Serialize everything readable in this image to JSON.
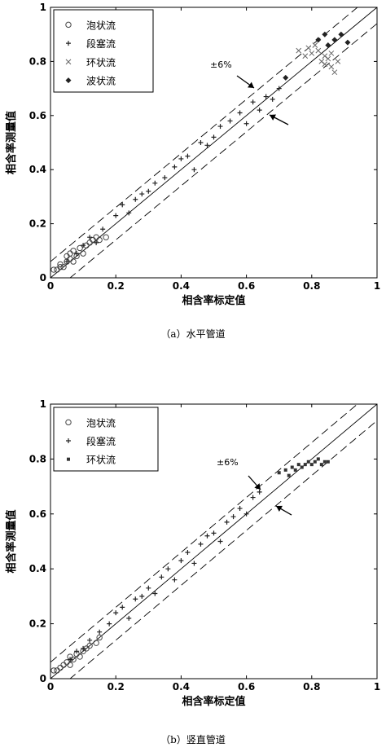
{
  "chart_data": [
    {
      "type": "scatter",
      "caption": "（a）水平管道",
      "xlabel": "相含率标定值",
      "ylabel": "相含率测量值",
      "xlim": [
        0,
        1
      ],
      "ylim": [
        0,
        1
      ],
      "xticks": [
        "0",
        "0.2",
        "0.4",
        "0.6",
        "0.8",
        "1"
      ],
      "yticks": [
        "0",
        "0.2",
        "0.4",
        "0.6",
        "0.8",
        "1"
      ],
      "grid": false,
      "legend_position": "top-left",
      "annotation": "±6%",
      "reference_lines": {
        "center_slope": 1,
        "band_percent": 6
      },
      "series": [
        {
          "name": "泡状流",
          "marker": "circle",
          "points": [
            [
              0.01,
              0.03
            ],
            [
              0.02,
              0.03
            ],
            [
              0.03,
              0.04
            ],
            [
              0.03,
              0.05
            ],
            [
              0.04,
              0.04
            ],
            [
              0.05,
              0.06
            ],
            [
              0.05,
              0.08
            ],
            [
              0.06,
              0.07
            ],
            [
              0.06,
              0.09
            ],
            [
              0.07,
              0.06
            ],
            [
              0.07,
              0.1
            ],
            [
              0.08,
              0.08
            ],
            [
              0.09,
              0.11
            ],
            [
              0.1,
              0.09
            ],
            [
              0.11,
              0.12
            ],
            [
              0.12,
              0.13
            ],
            [
              0.13,
              0.14
            ],
            [
              0.14,
              0.15
            ],
            [
              0.15,
              0.14
            ],
            [
              0.17,
              0.15
            ]
          ]
        },
        {
          "name": "段塞流",
          "marker": "plus",
          "points": [
            [
              0.05,
              0.06
            ],
            [
              0.08,
              0.09
            ],
            [
              0.1,
              0.12
            ],
            [
              0.12,
              0.15
            ],
            [
              0.14,
              0.13
            ],
            [
              0.16,
              0.18
            ],
            [
              0.2,
              0.23
            ],
            [
              0.22,
              0.27
            ],
            [
              0.24,
              0.24
            ],
            [
              0.26,
              0.29
            ],
            [
              0.28,
              0.31
            ],
            [
              0.3,
              0.32
            ],
            [
              0.32,
              0.35
            ],
            [
              0.35,
              0.37
            ],
            [
              0.38,
              0.41
            ],
            [
              0.4,
              0.44
            ],
            [
              0.42,
              0.45
            ],
            [
              0.44,
              0.4
            ],
            [
              0.46,
              0.5
            ],
            [
              0.48,
              0.49
            ],
            [
              0.5,
              0.52
            ],
            [
              0.52,
              0.56
            ],
            [
              0.55,
              0.58
            ],
            [
              0.58,
              0.61
            ],
            [
              0.6,
              0.57
            ],
            [
              0.62,
              0.65
            ],
            [
              0.64,
              0.62
            ],
            [
              0.66,
              0.67
            ],
            [
              0.68,
              0.66
            ],
            [
              0.7,
              0.7
            ]
          ]
        },
        {
          "name": "环状流",
          "marker": "x",
          "points": [
            [
              0.76,
              0.84
            ],
            [
              0.78,
              0.82
            ],
            [
              0.79,
              0.85
            ],
            [
              0.8,
              0.83
            ],
            [
              0.81,
              0.86
            ],
            [
              0.82,
              0.84
            ],
            [
              0.83,
              0.8
            ],
            [
              0.84,
              0.82
            ],
            [
              0.84,
              0.79
            ],
            [
              0.85,
              0.81
            ],
            [
              0.86,
              0.78
            ],
            [
              0.86,
              0.83
            ],
            [
              0.87,
              0.76
            ],
            [
              0.88,
              0.8
            ]
          ]
        },
        {
          "name": "波状流",
          "marker": "diamond",
          "points": [
            [
              0.72,
              0.74
            ],
            [
              0.82,
              0.88
            ],
            [
              0.84,
              0.9
            ],
            [
              0.85,
              0.86
            ],
            [
              0.87,
              0.88
            ],
            [
              0.89,
              0.9
            ],
            [
              0.91,
              0.87
            ]
          ]
        }
      ]
    },
    {
      "type": "scatter",
      "caption": "（b）竖直管道",
      "xlabel": "相含率标定值",
      "ylabel": "相含率测量值",
      "xlim": [
        0,
        1
      ],
      "ylim": [
        0,
        1
      ],
      "xticks": [
        "0",
        "0.2",
        "0.4",
        "0.6",
        "0.8",
        "1"
      ],
      "yticks": [
        "0",
        "0.2",
        "0.4",
        "0.6",
        "0.8",
        "1"
      ],
      "grid": false,
      "legend_position": "top-left",
      "annotation": "±6%",
      "reference_lines": {
        "center_slope": 1,
        "band_percent": 6
      },
      "series": [
        {
          "name": "泡状流",
          "marker": "circle",
          "points": [
            [
              0.01,
              0.03
            ],
            [
              0.02,
              0.03
            ],
            [
              0.03,
              0.04
            ],
            [
              0.04,
              0.05
            ],
            [
              0.05,
              0.06
            ],
            [
              0.06,
              0.05
            ],
            [
              0.06,
              0.08
            ],
            [
              0.07,
              0.07
            ],
            [
              0.08,
              0.09
            ],
            [
              0.09,
              0.08
            ],
            [
              0.1,
              0.1
            ],
            [
              0.11,
              0.11
            ],
            [
              0.12,
              0.12
            ],
            [
              0.14,
              0.13
            ],
            [
              0.15,
              0.15
            ]
          ]
        },
        {
          "name": "段塞流",
          "marker": "plus",
          "points": [
            [
              0.06,
              0.07
            ],
            [
              0.08,
              0.1
            ],
            [
              0.1,
              0.11
            ],
            [
              0.12,
              0.14
            ],
            [
              0.15,
              0.17
            ],
            [
              0.18,
              0.2
            ],
            [
              0.2,
              0.24
            ],
            [
              0.22,
              0.26
            ],
            [
              0.24,
              0.22
            ],
            [
              0.26,
              0.29
            ],
            [
              0.28,
              0.3
            ],
            [
              0.3,
              0.33
            ],
            [
              0.32,
              0.31
            ],
            [
              0.34,
              0.37
            ],
            [
              0.36,
              0.4
            ],
            [
              0.38,
              0.36
            ],
            [
              0.4,
              0.43
            ],
            [
              0.42,
              0.46
            ],
            [
              0.44,
              0.42
            ],
            [
              0.46,
              0.49
            ],
            [
              0.48,
              0.52
            ],
            [
              0.5,
              0.53
            ],
            [
              0.52,
              0.5
            ],
            [
              0.54,
              0.57
            ],
            [
              0.56,
              0.59
            ],
            [
              0.58,
              0.62
            ],
            [
              0.6,
              0.6
            ],
            [
              0.62,
              0.66
            ],
            [
              0.64,
              0.68
            ]
          ]
        },
        {
          "name": "环状流",
          "marker": "square",
          "points": [
            [
              0.7,
              0.75
            ],
            [
              0.72,
              0.76
            ],
            [
              0.73,
              0.74
            ],
            [
              0.74,
              0.77
            ],
            [
              0.75,
              0.76
            ],
            [
              0.76,
              0.78
            ],
            [
              0.77,
              0.77
            ],
            [
              0.78,
              0.78
            ],
            [
              0.79,
              0.79
            ],
            [
              0.8,
              0.78
            ],
            [
              0.81,
              0.79
            ],
            [
              0.82,
              0.8
            ],
            [
              0.83,
              0.78
            ],
            [
              0.84,
              0.79
            ],
            [
              0.85,
              0.79
            ]
          ]
        }
      ]
    }
  ]
}
